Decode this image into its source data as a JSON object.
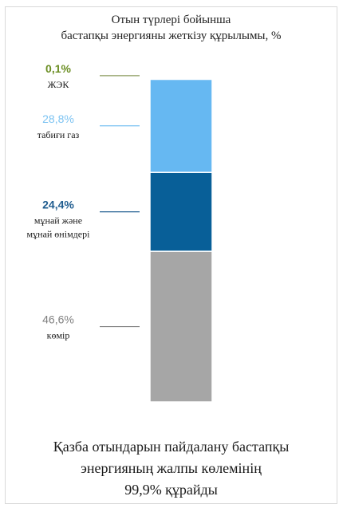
{
  "title_lines": [
    "Отын түрлері бойынша",
    "бастапқы энергияны жеткізу құрылымы, %"
  ],
  "footer_lines": [
    "Қазба отындарын пайдалану бастапқы",
    "энергияның жалпы көлемінің",
    "99,9% құрайды"
  ],
  "chart_data": {
    "type": "bar",
    "stacked": true,
    "unit": "%",
    "segments": [
      {
        "label_lines": [
          "көмір"
        ],
        "value": 46.6,
        "value_label": "46,6%",
        "color": "#a6a6a6",
        "label_color": "#7f7f7f",
        "line_color": "#7f7f7f",
        "bold": false
      },
      {
        "label_lines": [
          "мұнай және",
          "мұнай өнімдері"
        ],
        "value": 24.4,
        "value_label": "24,4%",
        "color": "#085f98",
        "label_color": "#1f5c8f",
        "line_color": "#1f5c8f",
        "bold": true
      },
      {
        "label_lines": [
          "табиғи газ"
        ],
        "value": 28.8,
        "value_label": "28,8%",
        "color": "#66b8f2",
        "label_color": "#7cc3f2",
        "line_color": "#7cc3f2",
        "bold": false
      },
      {
        "label_lines": [
          "ЖЭК"
        ],
        "value": 0.1,
        "value_label": "0,1%",
        "color": "#8fb04a",
        "label_color": "#6b8e23",
        "line_color": "#8a9a5b",
        "bold": true
      }
    ]
  }
}
